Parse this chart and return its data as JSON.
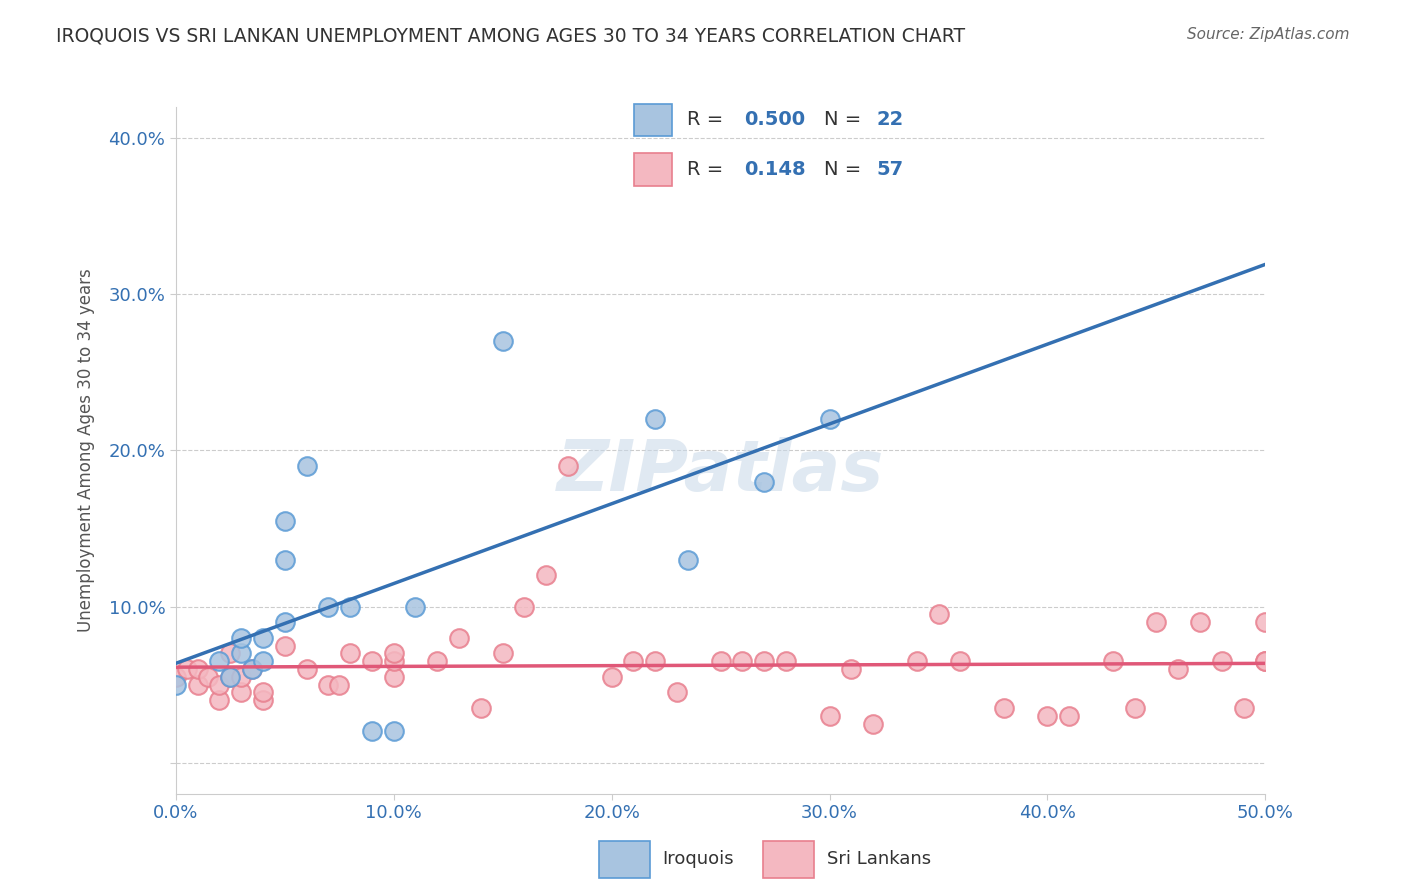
{
  "title": "IROQUOIS VS SRI LANKAN UNEMPLOYMENT AMONG AGES 30 TO 34 YEARS CORRELATION CHART",
  "source": "Source: ZipAtlas.com",
  "xlabel_label": "",
  "ylabel_label": "Unemployment Among Ages 30 to 34 years",
  "xlim": [
    0.0,
    0.5
  ],
  "ylim": [
    -0.02,
    0.42
  ],
  "xticks": [
    0.0,
    0.1,
    0.2,
    0.3,
    0.4,
    0.5
  ],
  "xticklabels": [
    "0.0%",
    "10.0%",
    "20.0%",
    "30.0%",
    "40.0%",
    "50.0%"
  ],
  "yticks": [
    0.0,
    0.1,
    0.2,
    0.3,
    0.4
  ],
  "yticklabels": [
    "",
    "10.0%",
    "20.0%",
    "30.0%",
    "40.0%"
  ],
  "iroquois_color": "#a8c4e0",
  "iroquois_edge": "#5b9bd5",
  "sri_lanka_color": "#f4b8c1",
  "sri_lanka_edge": "#e87f8e",
  "iroquois_line_color": "#3470b2",
  "sri_lanka_line_color": "#e05878",
  "iroquois_R": 0.5,
  "iroquois_N": 22,
  "sri_lanka_R": 0.148,
  "sri_lanka_N": 57,
  "watermark": "ZIPatlas",
  "iroquois_x": [
    0.0,
    0.02,
    0.025,
    0.03,
    0.03,
    0.035,
    0.04,
    0.04,
    0.05,
    0.05,
    0.05,
    0.06,
    0.07,
    0.08,
    0.09,
    0.1,
    0.11,
    0.15,
    0.22,
    0.235,
    0.27,
    0.3
  ],
  "iroquois_y": [
    0.05,
    0.065,
    0.055,
    0.07,
    0.08,
    0.06,
    0.065,
    0.08,
    0.09,
    0.13,
    0.155,
    0.19,
    0.1,
    0.1,
    0.02,
    0.02,
    0.1,
    0.27,
    0.22,
    0.13,
    0.18,
    0.22
  ],
  "srilanka_x": [
    0.0,
    0.005,
    0.01,
    0.01,
    0.015,
    0.02,
    0.02,
    0.025,
    0.025,
    0.03,
    0.03,
    0.035,
    0.04,
    0.04,
    0.05,
    0.06,
    0.07,
    0.075,
    0.08,
    0.09,
    0.1,
    0.1,
    0.1,
    0.12,
    0.13,
    0.14,
    0.15,
    0.16,
    0.17,
    0.18,
    0.2,
    0.21,
    0.22,
    0.23,
    0.25,
    0.26,
    0.27,
    0.28,
    0.3,
    0.31,
    0.32,
    0.34,
    0.35,
    0.36,
    0.38,
    0.4,
    0.41,
    0.43,
    0.44,
    0.45,
    0.46,
    0.47,
    0.48,
    0.49,
    0.5,
    0.5,
    0.5
  ],
  "srilanka_y": [
    0.055,
    0.06,
    0.05,
    0.06,
    0.055,
    0.04,
    0.05,
    0.055,
    0.07,
    0.045,
    0.055,
    0.06,
    0.04,
    0.045,
    0.075,
    0.06,
    0.05,
    0.05,
    0.07,
    0.065,
    0.055,
    0.065,
    0.07,
    0.065,
    0.08,
    0.035,
    0.07,
    0.1,
    0.12,
    0.19,
    0.055,
    0.065,
    0.065,
    0.045,
    0.065,
    0.065,
    0.065,
    0.065,
    0.03,
    0.06,
    0.025,
    0.065,
    0.095,
    0.065,
    0.035,
    0.03,
    0.03,
    0.065,
    0.035,
    0.09,
    0.06,
    0.09,
    0.065,
    0.035,
    0.065,
    0.09,
    0.065
  ],
  "background_color": "#ffffff",
  "grid_color": "#cccccc"
}
